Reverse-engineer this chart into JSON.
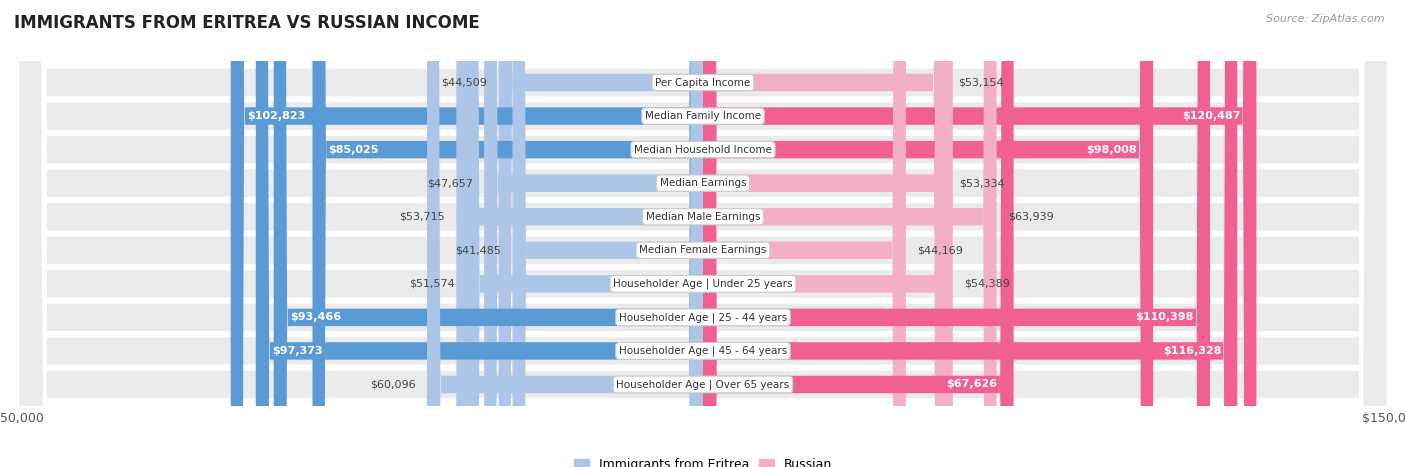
{
  "title": "IMMIGRANTS FROM ERITREA VS RUSSIAN INCOME",
  "source": "Source: ZipAtlas.com",
  "categories": [
    "Per Capita Income",
    "Median Family Income",
    "Median Household Income",
    "Median Earnings",
    "Median Male Earnings",
    "Median Female Earnings",
    "Householder Age | Under 25 years",
    "Householder Age | 25 - 44 years",
    "Householder Age | 45 - 64 years",
    "Householder Age | Over 65 years"
  ],
  "eritrea_values": [
    44509,
    102823,
    85025,
    47657,
    53715,
    41485,
    51574,
    93466,
    97373,
    60096
  ],
  "russian_values": [
    53154,
    120487,
    98008,
    53334,
    63939,
    44169,
    54389,
    110398,
    116328,
    67626
  ],
  "eritrea_labels": [
    "$44,509",
    "$102,823",
    "$85,025",
    "$47,657",
    "$53,715",
    "$41,485",
    "$51,574",
    "$93,466",
    "$97,373",
    "$60,096"
  ],
  "russian_labels": [
    "$53,154",
    "$120,487",
    "$98,008",
    "$53,334",
    "$63,939",
    "$44,169",
    "$54,389",
    "$110,398",
    "$116,328",
    "$67,626"
  ],
  "eritrea_color_light": "#adc6e8",
  "eritrea_color_dark": "#5b9bd5",
  "russian_color_light": "#f4afc8",
  "russian_color_dark": "#f06090",
  "max_value": 150000,
  "bar_height": 0.52,
  "row_bg": "#ebebeb",
  "row_border": "#ffffff",
  "background_color": "#ffffff",
  "legend_eritrea": "Immigrants from Eritrea",
  "legend_russian": "Russian",
  "inside_label_threshold": 65000,
  "title_fontsize": 12,
  "label_fontsize": 8,
  "cat_fontsize": 7.5,
  "axis_fontsize": 9
}
